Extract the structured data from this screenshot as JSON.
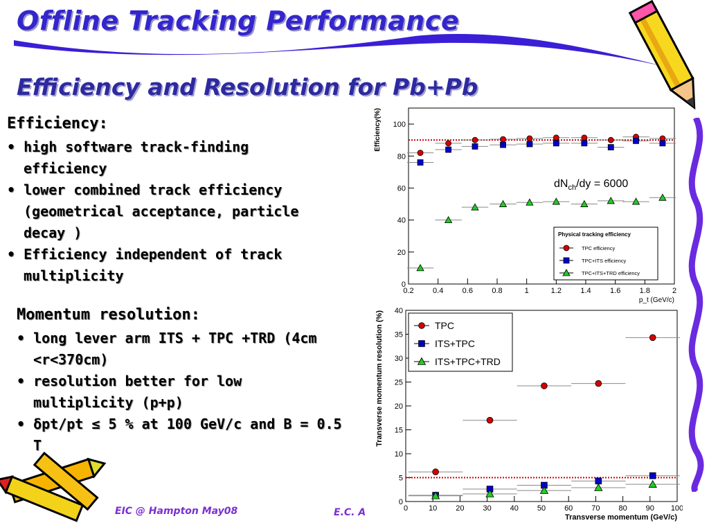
{
  "slide": {
    "title": "Offline Tracking Performance",
    "subtitle": "Efficiency and Resolution for Pb+Pb",
    "footer_left": "EIC @ Hampton May08",
    "footer_right": "E.C. A",
    "colors": {
      "title": "#3326cc",
      "swoosh": "#3a1fd6",
      "footer": "#7b2fd0"
    },
    "decorations": [
      "pencil-icon",
      "crayons-icon",
      "squiggle-border"
    ]
  },
  "efficiency_section": {
    "heading": "Efficiency:",
    "bullets": [
      "• high software track-finding efficiency",
      "• lower combined track efficiency (geometrical acceptance, particle decay )",
      "• Efficiency independent of track multiplicity"
    ]
  },
  "momentum_section": {
    "heading": "Momentum resolution:",
    "bullets": [
      "• long lever arm ITS + TPC +TRD (4cm <r<370cm)",
      "• resolution better for low multiplicity (p+p)",
      "• δpt/pt ≤ 5 % at 100 GeV/c and B = 0.5 T"
    ]
  },
  "chart_data": [
    {
      "type": "scatter",
      "xlabel": "p_t (GeV/c)",
      "ylabel": "Efficiency(%)",
      "xlim": [
        0.2,
        2.0
      ],
      "ylim": [
        0,
        110
      ],
      "xticks": [
        "0.2",
        "0.4",
        "0.6",
        "0.8",
        "1",
        "1.2",
        "1.4",
        "1.6",
        "1.8",
        "2"
      ],
      "yticks": [
        "0",
        "20",
        "40",
        "60",
        "80",
        "100"
      ],
      "annotation": "dN_ch/dy = 6000",
      "legend_title": "Physical tracking efficiency",
      "legend_position": "bottom-right",
      "reference_line": {
        "y": 90,
        "style": "red dotted"
      },
      "x": [
        0.28,
        0.47,
        0.65,
        0.84,
        1.02,
        1.2,
        1.39,
        1.57,
        1.74,
        1.92
      ],
      "series": [
        {
          "name": "TPC efficiency",
          "marker": "circle",
          "color": "#d40000",
          "values": [
            82,
            88,
            90,
            90.5,
            91,
            91.5,
            91.5,
            90,
            92,
            91
          ]
        },
        {
          "name": "TPC+ITS efficiency",
          "marker": "square",
          "color": "#0000cc",
          "values": [
            76,
            84,
            86,
            87,
            87.5,
            88,
            88,
            85.5,
            89.5,
            88
          ]
        },
        {
          "name": "TPC+ITS+TRD efficiency",
          "marker": "triangle",
          "color": "#22cc22",
          "values": [
            10,
            40,
            48,
            50,
            51,
            51.5,
            50,
            52,
            51.5,
            54
          ]
        }
      ]
    },
    {
      "type": "scatter",
      "xlabel": "Transverse momentum (GeV/c)",
      "ylabel": "Transverse momentum resolution (%)",
      "xlim": [
        0,
        100
      ],
      "ylim": [
        0,
        40
      ],
      "xticks": [
        "0",
        "10",
        "20",
        "30",
        "40",
        "50",
        "60",
        "70",
        "80",
        "90",
        "100"
      ],
      "yticks": [
        "0",
        "5",
        "10",
        "15",
        "20",
        "25",
        "30",
        "35",
        "40"
      ],
      "legend_position": "top-left",
      "reference_line": {
        "y": 5,
        "style": "red dotted"
      },
      "x": [
        11,
        31,
        51,
        71,
        91
      ],
      "x_err": [
        10,
        10,
        10,
        10,
        10
      ],
      "series": [
        {
          "name": "TPC",
          "marker": "circle",
          "color": "#d40000",
          "values": [
            6.2,
            17,
            24.2,
            24.7,
            34.3
          ]
        },
        {
          "name": "ITS+TPC",
          "marker": "square",
          "color": "#0000cc",
          "values": [
            1.3,
            2.6,
            3.4,
            4.3,
            5.4
          ]
        },
        {
          "name": "ITS+TPC+TRD",
          "marker": "triangle",
          "color": "#22cc22",
          "values": [
            1.2,
            1.6,
            2.3,
            2.9,
            3.6
          ]
        }
      ]
    }
  ]
}
